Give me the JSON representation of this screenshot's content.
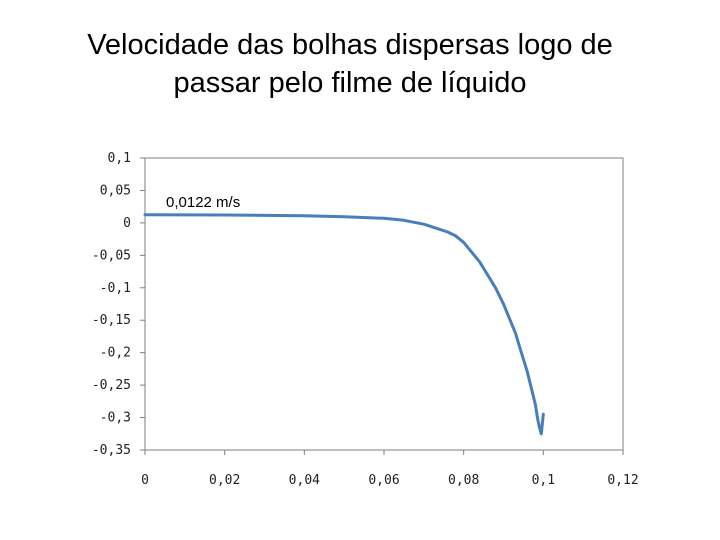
{
  "title_line1": "Velocidade das bolhas dispersas logo de",
  "title_line2": "passar pelo filme de líquido",
  "chart_data": {
    "type": "line",
    "xlim": [
      0,
      0.12
    ],
    "ylim": [
      -0.35,
      0.1
    ],
    "x_ticks": [
      0,
      0.02,
      0.04,
      0.06,
      0.08,
      0.1,
      0.12
    ],
    "x_tick_labels": [
      "0",
      "0,02",
      "0,04",
      "0,06",
      "0,08",
      "0,1",
      "0,12"
    ],
    "y_ticks": [
      0.1,
      0.05,
      0,
      -0.05,
      -0.1,
      -0.15,
      -0.2,
      -0.25,
      -0.3,
      -0.35
    ],
    "y_tick_labels": [
      "0,1",
      "0,05",
      "0",
      "-0,05",
      "-0,1",
      "-0,15",
      "-0,2",
      "-0,25",
      "-0,3",
      "-0,35"
    ],
    "grid": false,
    "annotation": "0,0122 m/s",
    "series_color": "#4a7ebb",
    "series": [
      {
        "x": [
          0,
          0.02,
          0.04,
          0.05,
          0.06,
          0.065,
          0.07,
          0.073,
          0.076,
          0.078,
          0.08,
          0.082,
          0.084,
          0.086,
          0.088,
          0.09,
          0.092,
          0.093,
          0.094,
          0.095,
          0.096,
          0.097,
          0.098,
          0.0985,
          0.099,
          0.0995,
          0.1
        ],
        "y": [
          0.0125,
          0.0122,
          0.011,
          0.0095,
          0.007,
          0.004,
          -0.002,
          -0.008,
          -0.014,
          -0.02,
          -0.03,
          -0.045,
          -0.06,
          -0.08,
          -0.1,
          -0.125,
          -0.155,
          -0.17,
          -0.19,
          -0.21,
          -0.23,
          -0.255,
          -0.28,
          -0.3,
          -0.315,
          -0.325,
          -0.295
        ]
      }
    ]
  }
}
